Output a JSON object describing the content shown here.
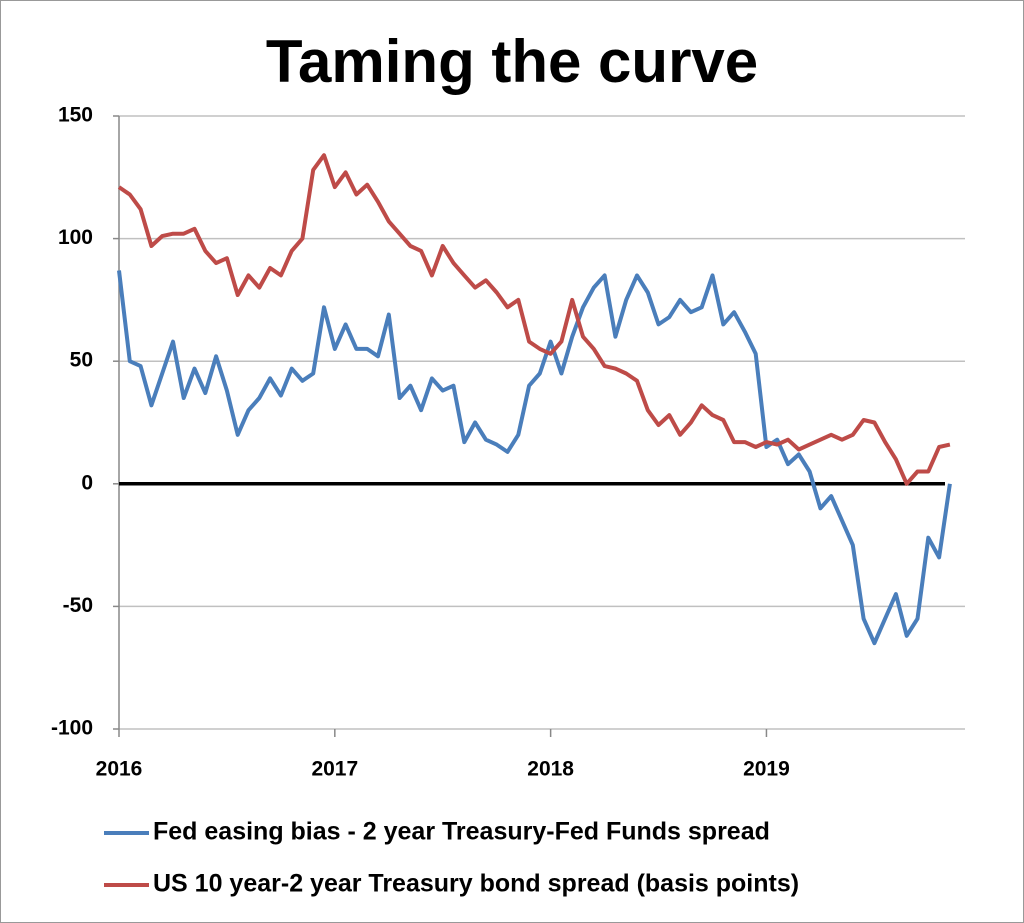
{
  "chart_data": {
    "type": "line",
    "title": "Taming the curve",
    "x": [
      2016.0,
      2016.05,
      2016.1,
      2016.15,
      2016.2,
      2016.25,
      2016.3,
      2016.35,
      2016.4,
      2016.45,
      2016.5,
      2016.55,
      2016.6,
      2016.65,
      2016.7,
      2016.75,
      2016.8,
      2016.85,
      2016.9,
      2016.95,
      2017.0,
      2017.05,
      2017.1,
      2017.15,
      2017.2,
      2017.25,
      2017.3,
      2017.35,
      2017.4,
      2017.45,
      2017.5,
      2017.55,
      2017.6,
      2017.65,
      2017.7,
      2017.75,
      2017.8,
      2017.85,
      2017.9,
      2017.95,
      2018.0,
      2018.05,
      2018.1,
      2018.15,
      2018.2,
      2018.25,
      2018.3,
      2018.35,
      2018.4,
      2018.45,
      2018.5,
      2018.55,
      2018.6,
      2018.65,
      2018.7,
      2018.75,
      2018.8,
      2018.85,
      2018.9,
      2018.95,
      2019.0,
      2019.05,
      2019.1,
      2019.15,
      2019.2,
      2019.25,
      2019.3,
      2019.35,
      2019.4,
      2019.45,
      2019.5,
      2019.55,
      2019.6,
      2019.65,
      2019.7,
      2019.75,
      2019.8,
      2019.85
    ],
    "series": [
      {
        "name": "Fed easing bias - 2 year Treasury-Fed Funds spread",
        "color": "#4a7ebb",
        "values": [
          87,
          50,
          48,
          32,
          45,
          58,
          35,
          47,
          37,
          52,
          38,
          20,
          30,
          35,
          43,
          36,
          47,
          42,
          45,
          72,
          55,
          65,
          55,
          55,
          52,
          69,
          35,
          40,
          30,
          43,
          38,
          40,
          17,
          25,
          18,
          16,
          13,
          20,
          40,
          45,
          58,
          45,
          60,
          72,
          80,
          85,
          60,
          75,
          85,
          78,
          65,
          68,
          75,
          70,
          72,
          85,
          65,
          70,
          62,
          53,
          15,
          18,
          8,
          12,
          5,
          -10,
          -5,
          -15,
          -25,
          -55,
          -65,
          -55,
          -45,
          -62,
          -55,
          -22,
          -30,
          0
        ]
      },
      {
        "name": "US 10 year-2 year Treasury bond spread (basis points)",
        "color": "#be4b48",
        "values": [
          121,
          118,
          112,
          97,
          101,
          102,
          102,
          104,
          95,
          90,
          92,
          77,
          85,
          80,
          88,
          85,
          95,
          100,
          128,
          134,
          121,
          127,
          118,
          122,
          115,
          107,
          102,
          97,
          95,
          85,
          97,
          90,
          85,
          80,
          83,
          78,
          72,
          75,
          58,
          55,
          53,
          58,
          75,
          60,
          55,
          48,
          47,
          45,
          42,
          30,
          24,
          28,
          20,
          25,
          32,
          28,
          26,
          17,
          17,
          15,
          17,
          16,
          18,
          14,
          16,
          18,
          20,
          18,
          20,
          26,
          25,
          17,
          10,
          0,
          5,
          5,
          15,
          16
        ]
      }
    ],
    "xlim": [
      2016,
      2019.92
    ],
    "xticks": [
      2016,
      2017,
      2018,
      2019
    ],
    "ylim": [
      -100,
      150
    ],
    "yticks": [
      -100,
      -50,
      0,
      50,
      100,
      150
    ],
    "grid": true,
    "zero_line": true,
    "legend": "bottom"
  }
}
